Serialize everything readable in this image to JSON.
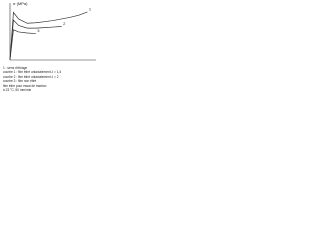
{
  "chart_data": {
    "type": "line",
    "y_label": "σ (MPa)",
    "x": [
      0,
      0.4,
      1,
      2,
      3,
      4,
      5,
      6,
      7,
      8,
      9
    ],
    "xlim": [
      0,
      10
    ],
    "ylim": [
      0,
      10
    ],
    "series": [
      {
        "name": "1",
        "color": "#333333",
        "values": [
          0,
          8.8,
          7.6,
          6.8,
          6.9,
          7.1,
          7.3,
          7.6,
          7.9,
          8.3,
          8.9
        ]
      },
      {
        "name": "2",
        "color": "#333333",
        "values": [
          0,
          7.4,
          6.4,
          5.9,
          5.9,
          6.0,
          6.1,
          6.2,
          null,
          null,
          null
        ]
      },
      {
        "name": "3",
        "color": "#333333",
        "values": [
          0,
          5.6,
          5.2,
          5.0,
          4.9,
          null,
          null,
          null,
          null,
          null,
          null
        ]
      }
    ],
    "legend_lines": [
      "1 : sens d'étirage",
      "courbe 1 : film étiré uniaxialement λ = 1,4",
      "courbe 2 : film étiré uniaxialement λ = 2",
      "courbe 3 : film non étiré",
      "film étiré pour essai de traction",
      "à 23 °C, 50 mm/min"
    ]
  }
}
